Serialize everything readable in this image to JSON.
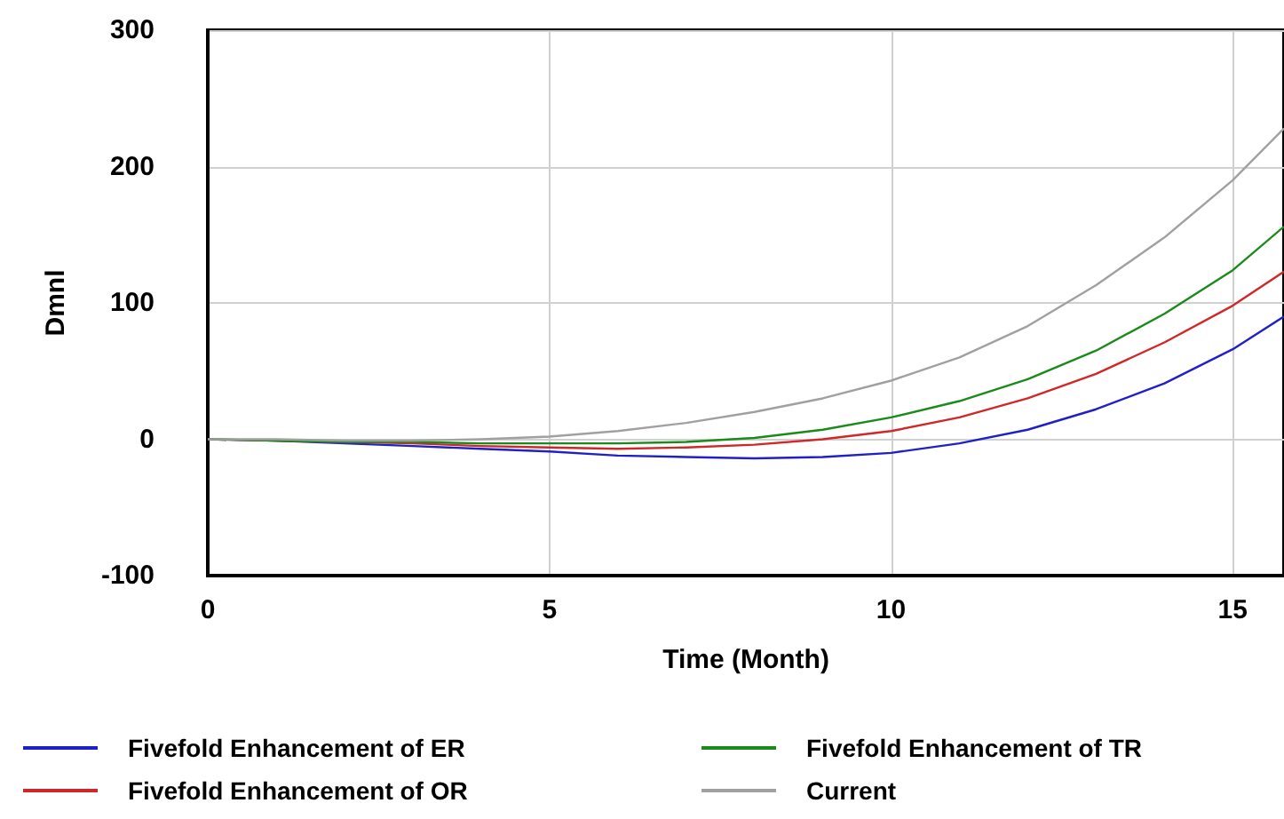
{
  "chart_data": {
    "type": "line",
    "xlabel": "Time (Month)",
    "ylabel": "Dmnl",
    "x": [
      0,
      1,
      2,
      3,
      4,
      5,
      6,
      7,
      8,
      9,
      10,
      11,
      12,
      13,
      14,
      15,
      15.75
    ],
    "xlim": [
      0,
      15.75
    ],
    "xticks": [
      0,
      5,
      10,
      15
    ],
    "ylim": [
      -100,
      300
    ],
    "yticks": [
      -100,
      0,
      100,
      200,
      300
    ],
    "grid": true,
    "legend": "bottom",
    "marker": "none",
    "line_style": "solid",
    "series": [
      {
        "name": "Fivefold Enhancement of ER",
        "color": "#2020c8",
        "values": [
          0,
          -1,
          -3,
          -5,
          -7,
          -9,
          -12,
          -13,
          -14,
          -13,
          -10,
          -3,
          7,
          22,
          41,
          66,
          90
        ]
      },
      {
        "name": "Fivefold Enhancement of OR",
        "color": "#d02828",
        "values": [
          0,
          -1,
          -2,
          -3,
          -5,
          -6,
          -7,
          -6,
          -4,
          0,
          6,
          16,
          30,
          48,
          71,
          98,
          123
        ]
      },
      {
        "name": "Fivefold Enhancement of TR",
        "color": "#1a8a1a",
        "values": [
          0,
          -1,
          -2,
          -2,
          -3,
          -3,
          -3,
          -2,
          1,
          7,
          16,
          28,
          44,
          65,
          92,
          124,
          156
        ]
      },
      {
        "name": "Current",
        "color": "#a0a0a0",
        "values": [
          0,
          0,
          -1,
          -1,
          0,
          2,
          6,
          12,
          20,
          30,
          43,
          60,
          83,
          113,
          148,
          190,
          228
        ]
      }
    ]
  }
}
